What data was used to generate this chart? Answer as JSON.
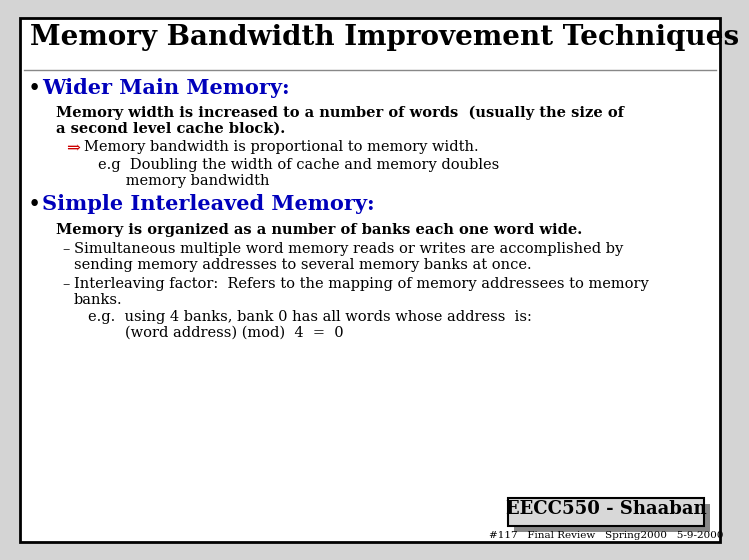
{
  "title": "Memory Bandwidth Improvement Techniques",
  "title_color": "#000000",
  "title_fontsize": 20,
  "background_color": "#d4d4d4",
  "slide_bg": "#ffffff",
  "border_color": "#000000",
  "bullet1_header": "Wider Main Memory:",
  "bullet1_header_color": "#0000bb",
  "bullet1_body_line1": "Memory width is increased to a number of words  (usually the size of",
  "bullet1_body_line2": "a second level cache block).",
  "bullet1_arrow_text": "Memory bandwidth is proportional to memory width.",
  "bullet1_eg1": "e.g  Doubling the width of cache and memory doubles",
  "bullet1_eg2": "      memory bandwidth",
  "bullet2_header": "Simple Interleaved Memory:",
  "bullet2_header_color": "#0000bb",
  "bullet2_bold_body": "Memory is organized as a number of banks each one word wide.",
  "bullet2_dash1_line1": "Simultaneous multiple word memory reads or writes are accomplished by",
  "bullet2_dash1_line2": "sending memory addresses to several memory banks at once.",
  "bullet2_dash2_line1": "Interleaving factor:  Refers to the mapping of memory addressees to memory",
  "bullet2_dash2_line2": "banks.",
  "bullet2_eg1": "e.g.  using 4 banks, bank 0 has all words whose address  is:",
  "bullet2_eg2": "        (word address) (mod)  4  =  0",
  "footer_box_text": "EECC550 - Shaaban",
  "footer_sub_text": "#117   Final Review   Spring2000   5-9-2000",
  "arrow_color": "#cc0000"
}
